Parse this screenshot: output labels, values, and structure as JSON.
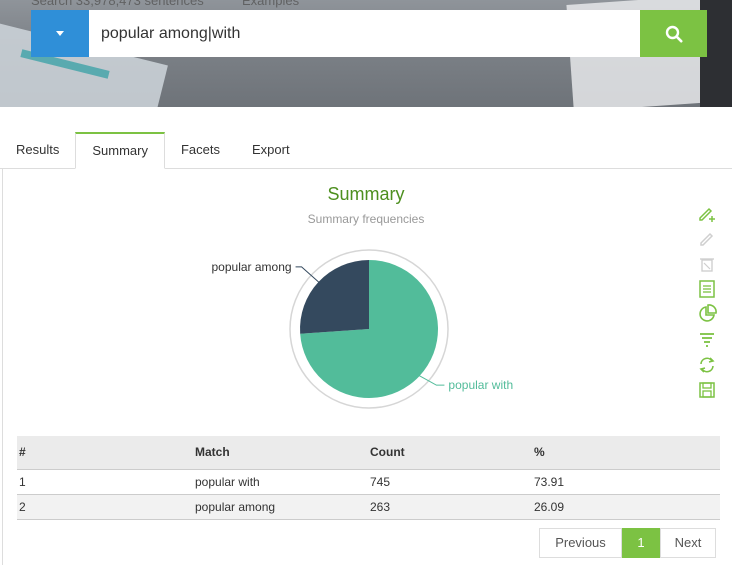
{
  "hero": {
    "faint_left": "Search 33,978,473 sentences",
    "faint_right": "Examples"
  },
  "search": {
    "value": "popular among|with",
    "dropdown_icon": "caret-down-icon",
    "button_icon": "search-icon"
  },
  "tabs": [
    {
      "label": "Results",
      "active": false
    },
    {
      "label": "Summary",
      "active": true
    },
    {
      "label": "Facets",
      "active": false
    },
    {
      "label": "Export",
      "active": false
    }
  ],
  "summary": {
    "title": "Summary",
    "subtitle": "Summary frequencies"
  },
  "chart_data": {
    "type": "pie",
    "categories": [
      "popular with",
      "popular among"
    ],
    "values": [
      73.91,
      26.09
    ],
    "colors": [
      "#52bc9a",
      "#34495e"
    ],
    "labels_visible": [
      "popular with",
      "popular among"
    ]
  },
  "toolbar": {
    "icons": [
      "pencil-plus-icon",
      "pencil-icon",
      "trash-icon",
      "document-icon",
      "pie-chart-icon",
      "filter-icon",
      "refresh-icon",
      "save-icon"
    ],
    "accent": "#7cc243"
  },
  "table": {
    "headers": [
      "#",
      "Match",
      "Count",
      "%"
    ],
    "rows": [
      [
        "1",
        "popular with",
        "745",
        "73.91"
      ],
      [
        "2",
        "popular among",
        "263",
        "26.09"
      ]
    ]
  },
  "pagination": {
    "previous": "Previous",
    "current": "1",
    "next": "Next"
  }
}
